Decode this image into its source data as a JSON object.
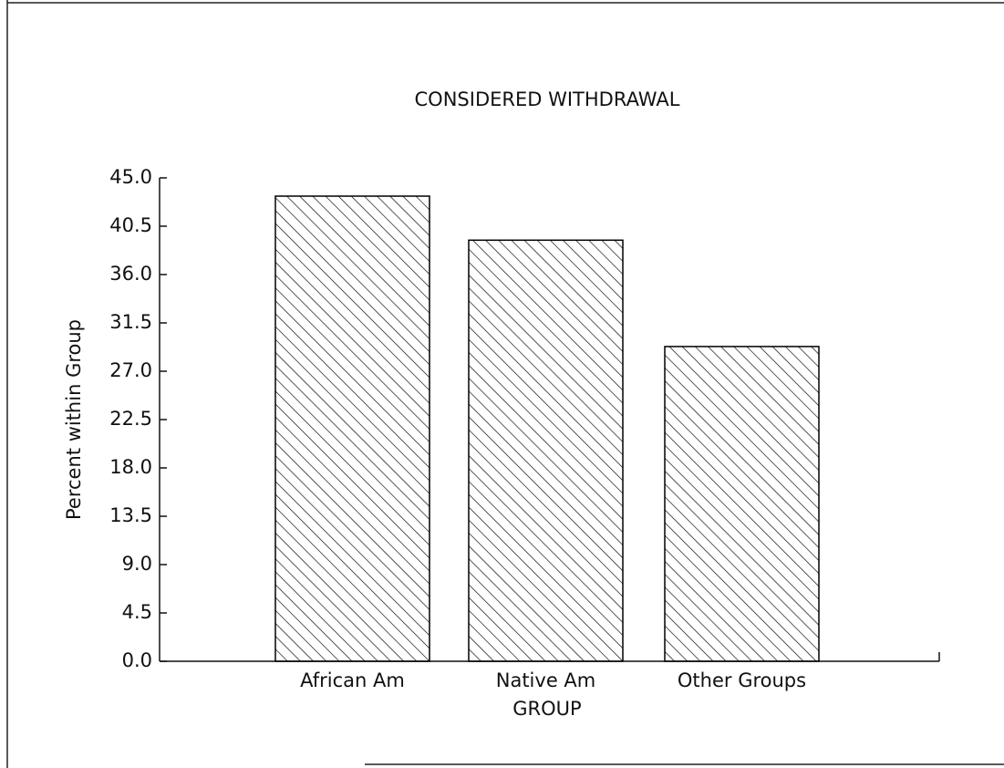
{
  "chart_data": {
    "type": "bar",
    "title": "CONSIDERED WITHDRAWAL",
    "x_label": "GROUP",
    "y_label": "Percent within Group",
    "categories": [
      "African Am",
      "Native Am",
      "Other Groups"
    ],
    "values": [
      43.3,
      39.2,
      29.3
    ],
    "color": "#000000",
    "hatch": true,
    "ylim": [
      0,
      45
    ],
    "yticks": [
      {
        "value": 0,
        "label": "0.0"
      },
      4.5,
      {
        "value": 9,
        "label": "9.0"
      },
      13.5,
      {
        "value": 18,
        "label": "18.0"
      },
      22.5,
      {
        "value": 27,
        "label": "27.0"
      },
      31.5,
      {
        "value": 36,
        "label": "36.0"
      },
      40.5,
      {
        "value": 45,
        "label": "45.0"
      }
    ],
    "grid": false
  }
}
